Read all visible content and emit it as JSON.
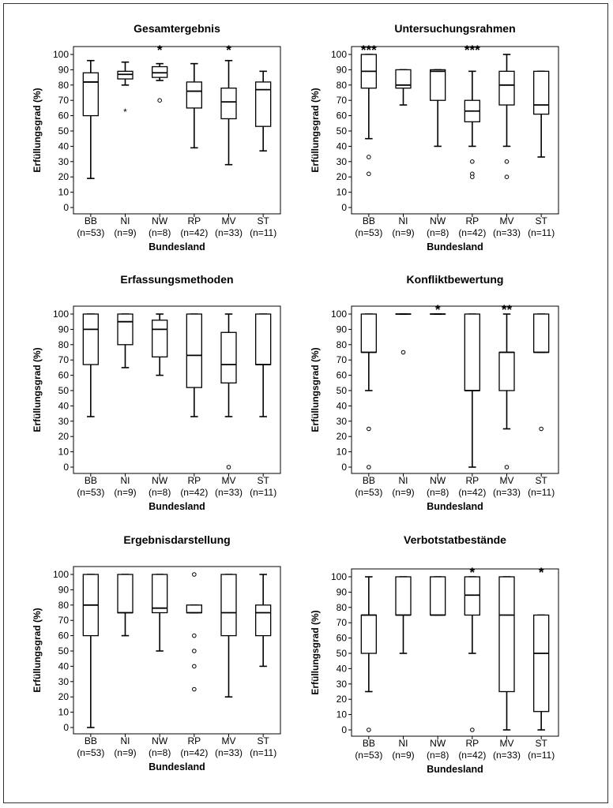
{
  "chart_data": [
    {
      "type": "boxplot",
      "title": "Gesamtergebnis",
      "xlabel": "Bundesland",
      "ylabel": "Erfüllungsgrad (%)",
      "ylim": [
        0,
        100
      ],
      "yticks": [
        0,
        10,
        20,
        30,
        40,
        50,
        60,
        70,
        80,
        90,
        100
      ],
      "categories": [
        "BB",
        "NI",
        "NW",
        "RP",
        "MV",
        "ST"
      ],
      "n_labels": [
        "(n=53)",
        "(n=9)",
        "(n=8)",
        "(n=42)",
        "(n=33)",
        "(n=11)"
      ],
      "boxes": [
        {
          "min": 19,
          "q1": 60,
          "median": 82,
          "q3": 88,
          "max": 96,
          "outliers": [],
          "extremes": [],
          "sig": ""
        },
        {
          "min": 80,
          "q1": 84,
          "median": 87,
          "q3": 89,
          "max": 95,
          "outliers": [],
          "extremes": [
            63
          ],
          "sig": ""
        },
        {
          "min": 83,
          "q1": 85,
          "median": 88,
          "q3": 92,
          "max": 94,
          "outliers": [
            70
          ],
          "extremes": [],
          "sig": "*"
        },
        {
          "min": 39,
          "q1": 65,
          "median": 76,
          "q3": 82,
          "max": 94,
          "outliers": [],
          "extremes": [],
          "sig": ""
        },
        {
          "min": 28,
          "q1": 58,
          "median": 69,
          "q3": 78,
          "max": 96,
          "outliers": [],
          "extremes": [],
          "sig": "*"
        },
        {
          "min": 37,
          "q1": 53,
          "median": 77,
          "q3": 82,
          "max": 89,
          "outliers": [],
          "extremes": [],
          "sig": ""
        }
      ]
    },
    {
      "type": "boxplot",
      "title": "Untersuchungsrahmen",
      "xlabel": "Bundesland",
      "ylabel": "Erfüllungsgrad (%)",
      "ylim": [
        0,
        100
      ],
      "yticks": [
        0,
        10,
        20,
        30,
        40,
        50,
        60,
        70,
        80,
        90,
        100
      ],
      "categories": [
        "BB",
        "NI",
        "NW",
        "RP",
        "MV",
        "ST"
      ],
      "n_labels": [
        "(n=53)",
        "(n=9)",
        "(n=8)",
        "(n=42)",
        "(n=33)",
        "(n=11)"
      ],
      "boxes": [
        {
          "min": 45,
          "q1": 78,
          "median": 89,
          "q3": 100,
          "max": 100,
          "outliers": [
            33,
            22
          ],
          "extremes": [],
          "sig": "***"
        },
        {
          "min": 67,
          "q1": 78,
          "median": 80,
          "q3": 90,
          "max": 90,
          "outliers": [],
          "extremes": [],
          "sig": ""
        },
        {
          "min": 40,
          "q1": 70,
          "median": 89,
          "q3": 90,
          "max": 90,
          "outliers": [],
          "extremes": [],
          "sig": ""
        },
        {
          "min": 40,
          "q1": 56,
          "median": 63,
          "q3": 70,
          "max": 89,
          "outliers": [
            30,
            22,
            20
          ],
          "extremes": [],
          "sig": "***"
        },
        {
          "min": 40,
          "q1": 67,
          "median": 80,
          "q3": 89,
          "max": 100,
          "outliers": [
            30,
            20
          ],
          "extremes": [],
          "sig": ""
        },
        {
          "min": 33,
          "q1": 61,
          "median": 67,
          "q3": 89,
          "max": 89,
          "outliers": [],
          "extremes": [],
          "sig": ""
        }
      ]
    },
    {
      "type": "boxplot",
      "title": "Erfassungsmethoden",
      "xlabel": "Bundesland",
      "ylabel": "Erfüllungsgrad (%)",
      "ylim": [
        0,
        100
      ],
      "yticks": [
        0,
        10,
        20,
        30,
        40,
        50,
        60,
        70,
        80,
        90,
        100
      ],
      "categories": [
        "BB",
        "NI",
        "NW",
        "RP",
        "MV",
        "ST"
      ],
      "n_labels": [
        "(n=53)",
        "(n=9)",
        "(n=8)",
        "(n=42)",
        "(n=33)",
        "(n=11)"
      ],
      "boxes": [
        {
          "min": 33,
          "q1": 67,
          "median": 90,
          "q3": 100,
          "max": 100,
          "outliers": [],
          "extremes": [],
          "sig": ""
        },
        {
          "min": 65,
          "q1": 80,
          "median": 95,
          "q3": 100,
          "max": 100,
          "outliers": [],
          "extremes": [],
          "sig": ""
        },
        {
          "min": 60,
          "q1": 72,
          "median": 90,
          "q3": 96,
          "max": 100,
          "outliers": [],
          "extremes": [],
          "sig": ""
        },
        {
          "min": 33,
          "q1": 52,
          "median": 73,
          "q3": 100,
          "max": 100,
          "outliers": [],
          "extremes": [],
          "sig": ""
        },
        {
          "min": 33,
          "q1": 55,
          "median": 67,
          "q3": 88,
          "max": 100,
          "outliers": [
            0
          ],
          "extremes": [],
          "sig": ""
        },
        {
          "min": 33,
          "q1": 67,
          "median": 67,
          "q3": 100,
          "max": 100,
          "outliers": [],
          "extremes": [],
          "sig": ""
        }
      ]
    },
    {
      "type": "boxplot",
      "title": "Konfliktbewertung",
      "xlabel": "Bundesland",
      "ylabel": "Erfüllungsgrad (%)",
      "ylim": [
        0,
        100
      ],
      "yticks": [
        0,
        10,
        20,
        30,
        40,
        50,
        60,
        70,
        80,
        90,
        100
      ],
      "categories": [
        "BB",
        "NI",
        "NW",
        "RP",
        "MV",
        "ST"
      ],
      "n_labels": [
        "(n=53)",
        "(n=9)",
        "(n=8)",
        "(n=42)",
        "(n=33)",
        "(n=11)"
      ],
      "boxes": [
        {
          "min": 50,
          "q1": 75,
          "median": 75,
          "q3": 100,
          "max": 100,
          "outliers": [
            25,
            0
          ],
          "extremes": [],
          "sig": ""
        },
        {
          "min": 100,
          "q1": 100,
          "median": 100,
          "q3": 100,
          "max": 100,
          "outliers": [
            75
          ],
          "extremes": [],
          "sig": ""
        },
        {
          "min": 100,
          "q1": 100,
          "median": 100,
          "q3": 100,
          "max": 100,
          "outliers": [],
          "extremes": [],
          "sig": "*"
        },
        {
          "min": 0,
          "q1": 50,
          "median": 50,
          "q3": 100,
          "max": 100,
          "outliers": [],
          "extremes": [],
          "sig": ""
        },
        {
          "min": 25,
          "q1": 50,
          "median": 75,
          "q3": 75,
          "max": 100,
          "outliers": [
            0
          ],
          "extremes": [],
          "sig": "**"
        },
        {
          "min": 75,
          "q1": 75,
          "median": 75,
          "q3": 100,
          "max": 100,
          "outliers": [
            25
          ],
          "extremes": [],
          "sig": ""
        }
      ]
    },
    {
      "type": "boxplot",
      "title": "Ergebnisdarstellung",
      "xlabel": "Bundesland",
      "ylabel": "Erfüllungsgrad (%)",
      "ylim": [
        0,
        100
      ],
      "yticks": [
        0,
        10,
        20,
        30,
        40,
        50,
        60,
        70,
        80,
        90,
        100
      ],
      "categories": [
        "BB",
        "NI",
        "NW",
        "RP",
        "MV",
        "ST"
      ],
      "n_labels": [
        "(n=53)",
        "(n=9)",
        "(n=8)",
        "(n=42)",
        "(n=33)",
        "(n=11)"
      ],
      "boxes": [
        {
          "min": 0,
          "q1": 60,
          "median": 80,
          "q3": 100,
          "max": 100,
          "outliers": [],
          "extremes": [],
          "sig": ""
        },
        {
          "min": 60,
          "q1": 75,
          "median": 75,
          "q3": 100,
          "max": 100,
          "outliers": [],
          "extremes": [],
          "sig": ""
        },
        {
          "min": 50,
          "q1": 75,
          "median": 78,
          "q3": 100,
          "max": 100,
          "outliers": [],
          "extremes": [],
          "sig": ""
        },
        {
          "min": 75,
          "q1": 75,
          "median": 75,
          "q3": 80,
          "max": 80,
          "outliers": [
            100,
            60,
            50,
            40,
            25
          ],
          "extremes": [],
          "sig": ""
        },
        {
          "min": 20,
          "q1": 60,
          "median": 75,
          "q3": 100,
          "max": 100,
          "outliers": [],
          "extremes": [],
          "sig": ""
        },
        {
          "min": 40,
          "q1": 60,
          "median": 75,
          "q3": 80,
          "max": 100,
          "outliers": [],
          "extremes": [],
          "sig": ""
        }
      ]
    },
    {
      "type": "boxplot",
      "title": "Verbotstatbestände",
      "xlabel": "Bundesland",
      "ylabel": "Erfüllungsgrad (%)",
      "ylim": [
        0,
        100
      ],
      "yticks": [
        0,
        10,
        20,
        30,
        40,
        50,
        60,
        70,
        80,
        90,
        100
      ],
      "categories": [
        "BB",
        "NI",
        "NW",
        "RP",
        "MV",
        "ST"
      ],
      "n_labels": [
        "(n=53)",
        "(n=9)",
        "(n=8)",
        "(n=42)",
        "(n=33)",
        "(n=11)"
      ],
      "boxes": [
        {
          "min": 25,
          "q1": 50,
          "median": 75,
          "q3": 75,
          "max": 100,
          "outliers": [
            0
          ],
          "extremes": [],
          "sig": ""
        },
        {
          "min": 50,
          "q1": 75,
          "median": 75,
          "q3": 100,
          "max": 100,
          "outliers": [],
          "extremes": [],
          "sig": ""
        },
        {
          "min": 75,
          "q1": 75,
          "median": 75,
          "q3": 100,
          "max": 100,
          "outliers": [],
          "extremes": [],
          "sig": ""
        },
        {
          "min": 50,
          "q1": 75,
          "median": 88,
          "q3": 100,
          "max": 100,
          "outliers": [
            0
          ],
          "extremes": [],
          "sig": "*"
        },
        {
          "min": 0,
          "q1": 25,
          "median": 75,
          "q3": 100,
          "max": 100,
          "outliers": [],
          "extremes": [],
          "sig": ""
        },
        {
          "min": 0,
          "q1": 12,
          "median": 50,
          "q3": 75,
          "max": 75,
          "outliers": [],
          "extremes": [],
          "sig": "*"
        }
      ]
    }
  ]
}
